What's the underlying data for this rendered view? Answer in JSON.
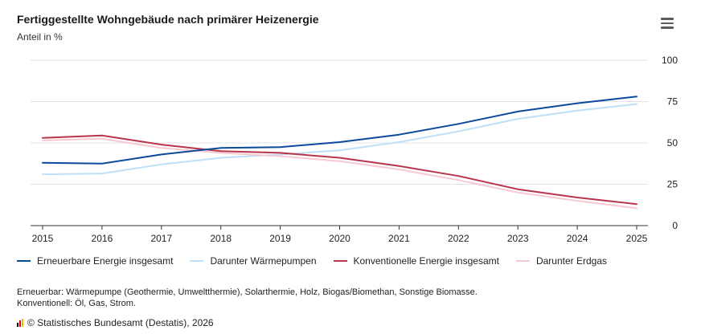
{
  "header": {
    "title": "Fertiggestellte Wohngebäude nach primärer Heizenergie",
    "subtitle": "Anteil in %",
    "menu_icon": "hamburger-menu-icon"
  },
  "chart_data": {
    "type": "line",
    "title": "Fertiggestellte Wohngebäude nach primärer Heizenergie",
    "ylabel": "Anteil in %",
    "x": [
      "2015",
      "2016",
      "2017",
      "2018",
      "2019",
      "2020",
      "2021",
      "2022",
      "2023",
      "2024",
      "2025"
    ],
    "y_ticks": [
      "0",
      "25",
      "50",
      "75",
      "100"
    ],
    "ylim": [
      0,
      100
    ],
    "grid": true,
    "y_axis_side": "right",
    "legend_position": "bottom",
    "series": [
      {
        "name": "Erneuerbare Energie insgesamt",
        "color": "#0b4a9b",
        "values": [
          38,
          37.5,
          43,
          47,
          47.5,
          50.5,
          55,
          61.5,
          69,
          74,
          78
        ]
      },
      {
        "name": "Darunter Wärmepumpen",
        "color": "#bfe0f6",
        "values": [
          31,
          31.5,
          37,
          41,
          43,
          45.5,
          50.5,
          57,
          64.5,
          69.5,
          73.5
        ]
      },
      {
        "name": "Konventionelle Energie insgesamt",
        "color": "#b8344a",
        "values": [
          53,
          54.5,
          49,
          45,
          44,
          41,
          36,
          30,
          22,
          17,
          13
        ]
      },
      {
        "name": "Darunter Erdgas",
        "color": "#f7c9d2",
        "values": [
          51.5,
          52.5,
          47,
          44,
          42,
          39,
          34,
          27.5,
          20,
          15,
          10.5
        ]
      }
    ]
  },
  "notes": {
    "line1": "Erneuerbar: Wärmepumpe (Geothermie, Umweltthermie), Solarthermie, Holz, Biogas/Biomethan, Sonstige Biomasse.",
    "line2": "Konventionell: Öl, Gas, Strom."
  },
  "footer": {
    "source": "© Statistisches Bundesamt (Destatis), 2026"
  }
}
